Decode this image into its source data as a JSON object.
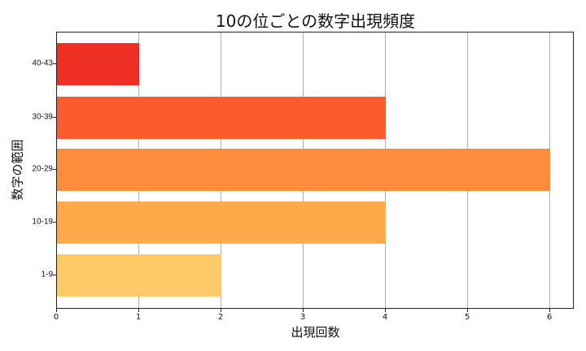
{
  "chart_data": {
    "type": "bar",
    "orientation": "horizontal",
    "title": "10の位ごとの数字出現頻度",
    "xlabel": "出現回数",
    "ylabel": "数字の範囲",
    "categories": [
      "1-9",
      "10-19",
      "20-29",
      "30-39",
      "40-43"
    ],
    "values": [
      2,
      4,
      6,
      4,
      1
    ],
    "colors": [
      "#fec966",
      "#fdab4a",
      "#fd8d3c",
      "#fc5b2e",
      "#ee3124"
    ],
    "xlim": [
      0,
      6.3
    ],
    "xticks": [
      "0",
      "1",
      "2",
      "3",
      "4",
      "5",
      "6"
    ],
    "grid": {
      "x": true,
      "y": false
    },
    "legend": null
  }
}
